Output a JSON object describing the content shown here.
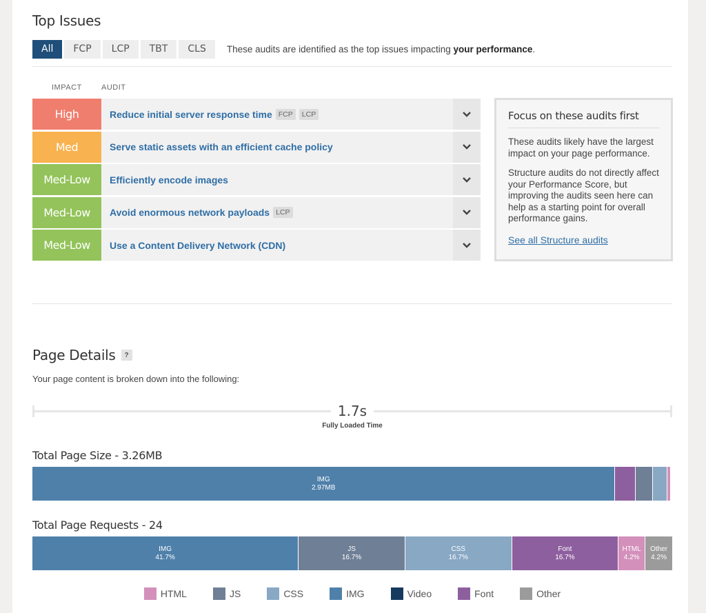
{
  "top_issues": {
    "title": "Top Issues",
    "tabs": [
      {
        "label": "All",
        "active": true
      },
      {
        "label": "FCP",
        "active": false
      },
      {
        "label": "LCP",
        "active": false
      },
      {
        "label": "TBT",
        "active": false
      },
      {
        "label": "CLS",
        "active": false
      }
    ],
    "note_prefix": "These audits are identified as the top issues impacting ",
    "note_bold": "your performance",
    "note_suffix": ".",
    "col_impact": "IMPACT",
    "col_audit": "AUDIT",
    "rows": [
      {
        "impact": "High",
        "color": "#f07e6e",
        "audit": "Reduce initial server response time",
        "tags": [
          "FCP",
          "LCP"
        ]
      },
      {
        "impact": "Med",
        "color": "#f8b24f",
        "audit": "Serve static assets with an efficient cache policy",
        "tags": []
      },
      {
        "impact": "Med-Low",
        "color": "#93c35a",
        "audit": "Efficiently encode images",
        "tags": []
      },
      {
        "impact": "Med-Low",
        "color": "#93c35a",
        "audit": "Avoid enormous network payloads",
        "tags": [
          "LCP"
        ]
      },
      {
        "impact": "Med-Low",
        "color": "#93c35a",
        "audit": "Use a Content Delivery Network (CDN)",
        "tags": []
      }
    ]
  },
  "focus": {
    "title": "Focus on these audits first",
    "p1": "These audits likely have the largest impact on your page performance.",
    "p2": "Structure audits do not directly affect your Performance Score, but improving the audits seen here can help as a starting point for overall performance gains.",
    "link": "See all Structure audits"
  },
  "page_details": {
    "title": "Page Details",
    "help": "?",
    "subtitle": "Your page content is broken down into the following:",
    "fully_loaded_value": "1.7s",
    "fully_loaded_label": "Fully Loaded Time",
    "size_title": "Total Page Size - 3.26MB",
    "requests_title": "Total Page Requests - 24"
  },
  "chart_data": [
    {
      "type": "bar",
      "title": "Total Page Size - 3.26MB",
      "stacked": true,
      "series": [
        {
          "name": "IMG",
          "value_pct": 91.1,
          "label": "IMG",
          "sublabel": "2.97MB"
        },
        {
          "name": "Font",
          "value_pct": 3.2,
          "label": "",
          "sublabel": ""
        },
        {
          "name": "JS",
          "value_pct": 2.7,
          "label": "",
          "sublabel": ""
        },
        {
          "name": "CSS",
          "value_pct": 2.3,
          "label": "",
          "sublabel": ""
        },
        {
          "name": "HTML",
          "value_pct": 0.4,
          "label": "",
          "sublabel": ""
        }
      ]
    },
    {
      "type": "bar",
      "title": "Total Page Requests - 24",
      "stacked": true,
      "series": [
        {
          "name": "IMG",
          "value_pct": 41.7,
          "label": "IMG",
          "sublabel": "41.7%"
        },
        {
          "name": "JS",
          "value_pct": 16.7,
          "label": "JS",
          "sublabel": "16.7%"
        },
        {
          "name": "CSS",
          "value_pct": 16.7,
          "label": "CSS",
          "sublabel": "16.7%"
        },
        {
          "name": "Font",
          "value_pct": 16.7,
          "label": "Font",
          "sublabel": "16.7%"
        },
        {
          "name": "HTML",
          "value_pct": 4.2,
          "label": "HTML",
          "sublabel": "4.2%"
        },
        {
          "name": "Other",
          "value_pct": 4.2,
          "label": "Other",
          "sublabel": "4.2%"
        }
      ]
    }
  ],
  "legend": [
    {
      "name": "HTML",
      "color": "#d390bb"
    },
    {
      "name": "JS",
      "color": "#6f7f95"
    },
    {
      "name": "CSS",
      "color": "#88a8c4"
    },
    {
      "name": "IMG",
      "color": "#4f80aa"
    },
    {
      "name": "Video",
      "color": "#163a5f"
    },
    {
      "name": "Font",
      "color": "#8e5f9e"
    },
    {
      "name": "Other",
      "color": "#9b9b9b"
    }
  ],
  "colors": {
    "tab_active": "#1e4e79",
    "link": "#2f6ea5"
  }
}
